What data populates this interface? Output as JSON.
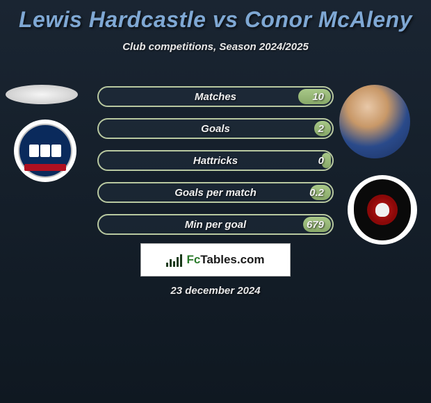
{
  "title": "Lewis Hardcastle vs Conor McAleny",
  "subtitle": "Club competitions, Season 2024/2025",
  "date": "23 december 2024",
  "logo": {
    "text_prefix": "Fc",
    "text_suffix": "Tables.com"
  },
  "stats": [
    {
      "label": "Matches",
      "value": "10",
      "fill_pct": 14
    },
    {
      "label": "Goals",
      "value": "2",
      "fill_pct": 7
    },
    {
      "label": "Hattricks",
      "value": "0",
      "fill_pct": 4
    },
    {
      "label": "Goals per match",
      "value": "0.2",
      "fill_pct": 9
    },
    {
      "label": "Min per goal",
      "value": "679",
      "fill_pct": 12
    }
  ],
  "colors": {
    "title": "#7fa8d4",
    "bar_border": "#b8c8a0",
    "bar_fill_top": "#a8c888",
    "bar_fill_bottom": "#88a868",
    "bg_top": "#1a2532",
    "bg_bottom": "#0f1821",
    "text_light": "#e8e8e8"
  }
}
